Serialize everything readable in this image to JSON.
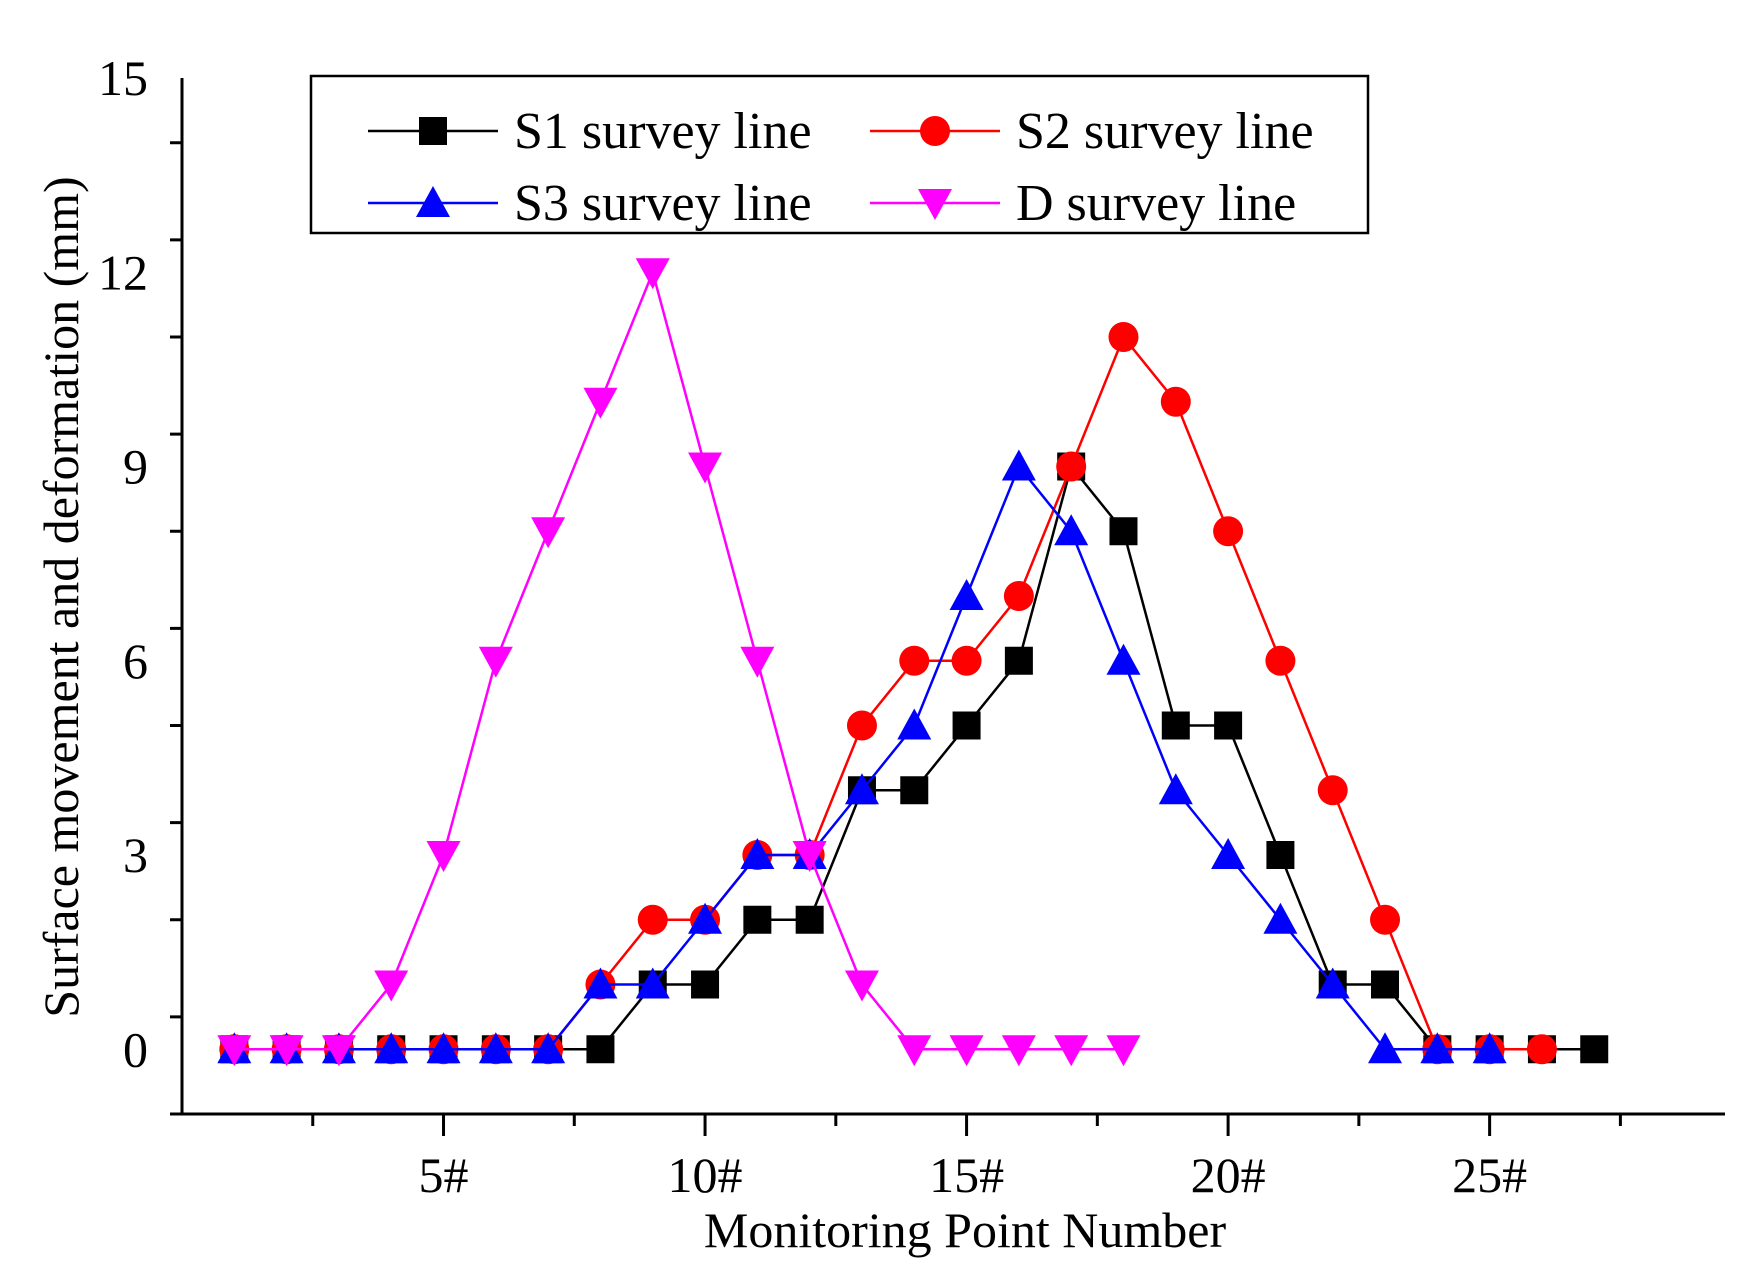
{
  "chart_data": {
    "type": "line",
    "title": "",
    "xlabel": "Monitoring Point Number",
    "ylabel": "Surface movement and deformation (mm)",
    "xlim": [
      0,
      29.5
    ],
    "ylim": [
      -1,
      15
    ],
    "xticks": [
      5,
      10,
      15,
      20,
      25
    ],
    "xtick_labels": [
      "5#",
      "10#",
      "15#",
      "20#",
      "25#"
    ],
    "yticks": [
      0,
      3,
      6,
      9,
      12,
      15
    ],
    "ytick_labels": [
      "0",
      "3",
      "6",
      "9",
      "12",
      "15"
    ],
    "legend_position": "top",
    "series": [
      {
        "name": "S1 survey line",
        "color": "#000000",
        "marker": "square",
        "x": [
          1,
          2,
          3,
          4,
          5,
          6,
          7,
          8,
          9,
          10,
          11,
          12,
          13,
          14,
          15,
          16,
          17,
          18,
          19,
          20,
          21,
          22,
          23,
          24,
          25,
          26,
          27
        ],
        "values": [
          0,
          0,
          0,
          0,
          0,
          0,
          0,
          0,
          1,
          1,
          2,
          2,
          4,
          4,
          5,
          6,
          9,
          8,
          5,
          5,
          3,
          1,
          1,
          0,
          0,
          0,
          0
        ]
      },
      {
        "name": "S2 survey line",
        "color": "#ff0000",
        "marker": "circle",
        "x": [
          1,
          2,
          3,
          4,
          5,
          6,
          7,
          8,
          9,
          10,
          11,
          12,
          13,
          14,
          15,
          16,
          17,
          18,
          19,
          20,
          21,
          22,
          23,
          24,
          25,
          26
        ],
        "values": [
          0,
          0,
          0,
          0,
          0,
          0,
          0,
          1,
          2,
          2,
          3,
          3,
          5,
          6,
          6,
          7,
          9,
          11,
          10,
          8,
          6,
          4,
          2,
          0,
          0,
          0
        ]
      },
      {
        "name": "S3 survey line",
        "color": "#0000ff",
        "marker": "triangle-up",
        "x": [
          1,
          2,
          3,
          4,
          5,
          6,
          7,
          8,
          9,
          10,
          11,
          12,
          13,
          14,
          15,
          16,
          17,
          18,
          19,
          20,
          21,
          22,
          23,
          24,
          25
        ],
        "values": [
          0,
          0,
          0,
          0,
          0,
          0,
          0,
          1,
          1,
          2,
          3,
          3,
          4,
          5,
          7,
          9,
          8,
          6,
          4,
          3,
          2,
          1,
          0,
          0,
          0
        ]
      },
      {
        "name": "D survey line",
        "color": "#ff00ff",
        "marker": "triangle-down",
        "x": [
          1,
          2,
          3,
          4,
          5,
          6,
          7,
          8,
          9,
          10,
          11,
          12,
          13,
          14,
          15,
          16,
          17,
          18
        ],
        "values": [
          0,
          0,
          0,
          1,
          3,
          6,
          8,
          10,
          12,
          9,
          6,
          3,
          1,
          0,
          0,
          0,
          0,
          0
        ]
      }
    ]
  }
}
